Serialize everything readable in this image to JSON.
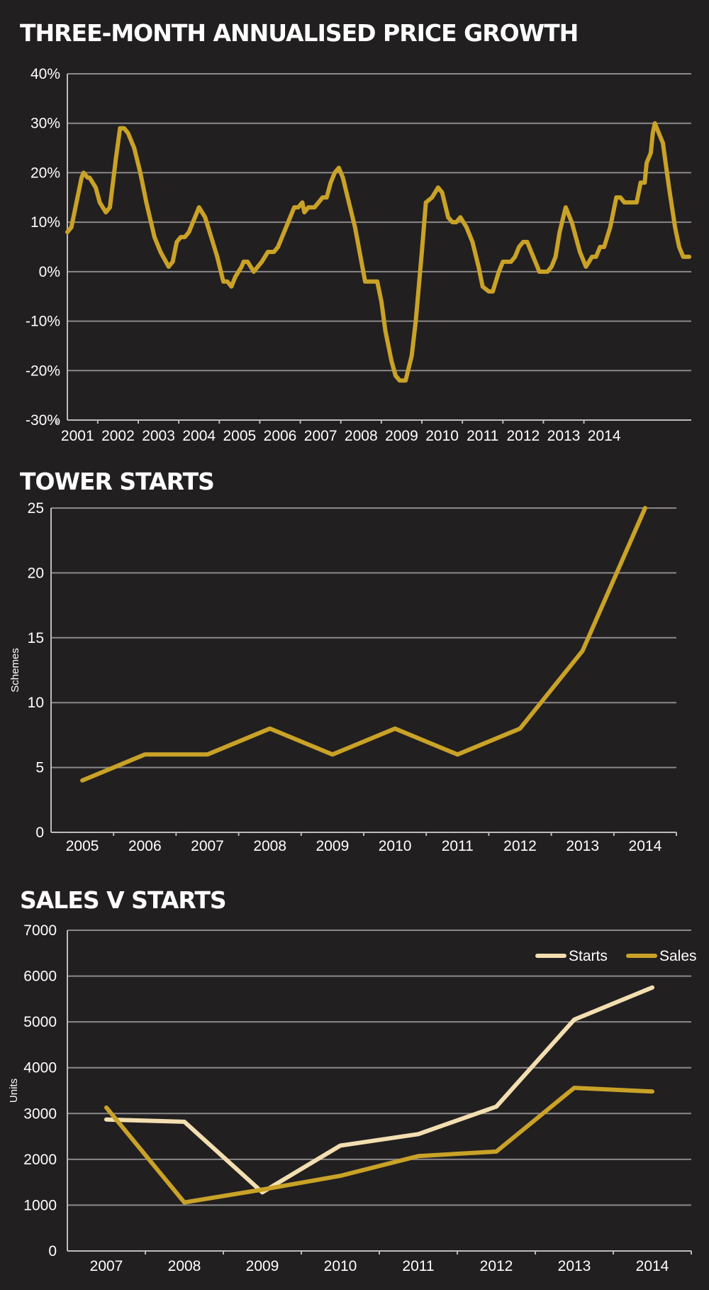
{
  "colors": {
    "background": "#221f20",
    "gold": "#c9a227",
    "cream": "#f2deb0",
    "text": "#ffffff",
    "grid": "#8a8889"
  },
  "chart_data": [
    {
      "type": "line",
      "title": "THREE-MONTH ANNUALISED PRICE GROWTH",
      "xlabel": "",
      "ylabel": "",
      "ylim": [
        -30,
        40
      ],
      "yticks": [
        "40%",
        "30%",
        "20%",
        "10%",
        "0%",
        "-10%",
        "-20%",
        "-30%"
      ],
      "xticks": [
        "2001",
        "2002",
        "2003",
        "2004",
        "2005",
        "2006",
        "2007",
        "2008",
        "2009",
        "2010",
        "2011",
        "2012",
        "2013",
        "2014"
      ],
      "grid": true,
      "series": [
        {
          "name": "",
          "color": "#c9a227",
          "points": [
            [
              2000.5,
              8
            ],
            [
              2000.6,
              9
            ],
            [
              2000.75,
              15
            ],
            [
              2000.85,
              19
            ],
            [
              2000.9,
              20
            ],
            [
              2001.0,
              19
            ],
            [
              2001.05,
              19
            ],
            [
              2001.2,
              17
            ],
            [
              2001.3,
              14
            ],
            [
              2001.45,
              12
            ],
            [
              2001.55,
              13
            ],
            [
              2001.7,
              23
            ],
            [
              2001.8,
              29
            ],
            [
              2001.9,
              29
            ],
            [
              2002.0,
              28
            ],
            [
              2002.1,
              26
            ],
            [
              2002.15,
              25
            ],
            [
              2002.3,
              20
            ],
            [
              2002.45,
              14
            ],
            [
              2002.65,
              7
            ],
            [
              2002.8,
              4
            ],
            [
              2003.0,
              1
            ],
            [
              2003.1,
              2
            ],
            [
              2003.2,
              6
            ],
            [
              2003.3,
              7
            ],
            [
              2003.4,
              7
            ],
            [
              2003.5,
              8
            ],
            [
              2003.65,
              11
            ],
            [
              2003.75,
              13
            ],
            [
              2003.9,
              11
            ],
            [
              2004.05,
              7
            ],
            [
              2004.2,
              3
            ],
            [
              2004.35,
              -2
            ],
            [
              2004.45,
              -2
            ],
            [
              2004.55,
              -3
            ],
            [
              2004.65,
              -1
            ],
            [
              2004.8,
              1
            ],
            [
              2004.85,
              2
            ],
            [
              2004.95,
              2
            ],
            [
              2005.1,
              0
            ],
            [
              2005.2,
              1
            ],
            [
              2005.3,
              2
            ],
            [
              2005.45,
              4
            ],
            [
              2005.6,
              4
            ],
            [
              2005.7,
              5
            ],
            [
              2005.85,
              8
            ],
            [
              2006.0,
              11
            ],
            [
              2006.1,
              13
            ],
            [
              2006.2,
              13
            ],
            [
              2006.3,
              14
            ],
            [
              2006.35,
              12
            ],
            [
              2006.45,
              13
            ],
            [
              2006.6,
              13
            ],
            [
              2006.7,
              14
            ],
            [
              2006.8,
              15
            ],
            [
              2006.9,
              15
            ],
            [
              2007.0,
              18
            ],
            [
              2007.1,
              20
            ],
            [
              2007.2,
              21
            ],
            [
              2007.3,
              19
            ],
            [
              2007.45,
              14
            ],
            [
              2007.6,
              9
            ],
            [
              2007.85,
              -2
            ],
            [
              2008.05,
              -2
            ],
            [
              2008.15,
              -2
            ],
            [
              2008.25,
              -6
            ],
            [
              2008.35,
              -12
            ],
            [
              2008.5,
              -18
            ],
            [
              2008.6,
              -21
            ],
            [
              2008.7,
              -22
            ],
            [
              2008.85,
              -22
            ],
            [
              2009.0,
              -17
            ],
            [
              2009.1,
              -10
            ],
            [
              2009.25,
              4
            ],
            [
              2009.35,
              14
            ],
            [
              2009.5,
              15
            ],
            [
              2009.65,
              17
            ],
            [
              2009.75,
              16
            ],
            [
              2009.9,
              11
            ],
            [
              2010.0,
              10
            ],
            [
              2010.1,
              10
            ],
            [
              2010.2,
              11
            ],
            [
              2010.35,
              9
            ],
            [
              2010.5,
              6
            ],
            [
              2010.65,
              1
            ],
            [
              2010.75,
              -3
            ],
            [
              2010.9,
              -4
            ],
            [
              2011.0,
              -4
            ],
            [
              2011.15,
              0
            ],
            [
              2011.25,
              2
            ],
            [
              2011.35,
              2
            ],
            [
              2011.45,
              2
            ],
            [
              2011.55,
              3
            ],
            [
              2011.65,
              5
            ],
            [
              2011.75,
              6
            ],
            [
              2011.85,
              6
            ],
            [
              2011.95,
              4
            ],
            [
              2012.1,
              1
            ],
            [
              2012.15,
              0
            ],
            [
              2012.35,
              0
            ],
            [
              2012.45,
              1
            ],
            [
              2012.55,
              3
            ],
            [
              2012.65,
              8
            ],
            [
              2012.8,
              13
            ],
            [
              2012.95,
              10
            ],
            [
              2013.15,
              4
            ],
            [
              2013.3,
              1
            ],
            [
              2013.45,
              3
            ],
            [
              2013.55,
              3
            ],
            [
              2013.65,
              5
            ],
            [
              2013.75,
              5
            ],
            [
              2013.9,
              9
            ],
            [
              2014.05,
              15
            ],
            [
              2014.15,
              15
            ],
            [
              2014.25,
              14
            ],
            [
              2014.55,
              14
            ],
            [
              2014.65,
              18
            ],
            [
              2014.75,
              18
            ],
            [
              2014.8,
              22
            ],
            [
              2014.9,
              24
            ],
            [
              2014.95,
              28
            ],
            [
              2015.0,
              30
            ],
            [
              2015.1,
              28
            ],
            [
              2015.2,
              26
            ],
            [
              2015.35,
              17
            ],
            [
              2015.5,
              9
            ],
            [
              2015.6,
              5
            ],
            [
              2015.7,
              3
            ],
            [
              2015.85,
              3
            ]
          ]
        }
      ]
    },
    {
      "type": "line",
      "title": "TOWER STARTS",
      "xlabel": "",
      "ylabel": "Schemes",
      "ylim": [
        0,
        25
      ],
      "yticks": [
        "25",
        "20",
        "15",
        "10",
        "5",
        "0"
      ],
      "categories": [
        "2005",
        "2006",
        "2007",
        "2008",
        "2009",
        "2010",
        "2011",
        "2012",
        "2013",
        "2014"
      ],
      "grid": true,
      "series": [
        {
          "name": "",
          "color": "#c9a227",
          "values": [
            4,
            6,
            6,
            8,
            6,
            8,
            6,
            8,
            14,
            25
          ]
        }
      ]
    },
    {
      "type": "line",
      "title": "SALES V STARTS",
      "xlabel": "",
      "ylabel": "Units",
      "ylim": [
        0,
        7000
      ],
      "yticks": [
        "7000",
        "6000",
        "5000",
        "4000",
        "3000",
        "2000",
        "1000",
        "0"
      ],
      "categories": [
        "2007",
        "2008",
        "2009",
        "2010",
        "2011",
        "2012",
        "2013",
        "2014"
      ],
      "grid": true,
      "legend": "top-right",
      "series": [
        {
          "name": "Starts",
          "color": "#f2deb0",
          "values": [
            2870,
            2820,
            1280,
            2300,
            2550,
            3150,
            5050,
            5750
          ]
        },
        {
          "name": "Sales",
          "color": "#c9a227",
          "values": [
            3130,
            1060,
            1340,
            1640,
            2070,
            2170,
            3560,
            3480
          ]
        }
      ]
    }
  ]
}
